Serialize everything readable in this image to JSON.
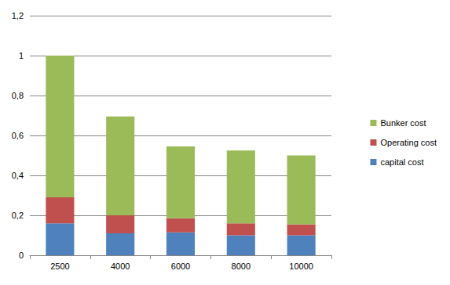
{
  "chart_data": {
    "type": "bar",
    "stacked": true,
    "categories": [
      "2500",
      "4000",
      "6000",
      "8000",
      "10000"
    ],
    "series": [
      {
        "name": "capital cost",
        "color": "#4f81bd",
        "values": [
          0.16,
          0.11,
          0.115,
          0.1,
          0.1
        ]
      },
      {
        "name": "Operating cost",
        "color": "#c0504d",
        "values": [
          0.13,
          0.09,
          0.07,
          0.06,
          0.055
        ]
      },
      {
        "name": "Bunker cost",
        "color": "#9bbb59",
        "values": [
          0.71,
          0.495,
          0.36,
          0.365,
          0.345
        ]
      }
    ],
    "ylim": [
      0,
      1.2
    ],
    "yticks": [
      0,
      {
        "value": 0.2,
        "label": "0,2"
      },
      {
        "value": 0.4,
        "label": "0,4"
      },
      {
        "value": 0.6,
        "label": "0,6"
      },
      {
        "value": 0.8,
        "label": "0,8"
      },
      1,
      {
        "value": 1.2,
        "label": "1,2"
      }
    ],
    "grid": true,
    "legend": "right"
  }
}
